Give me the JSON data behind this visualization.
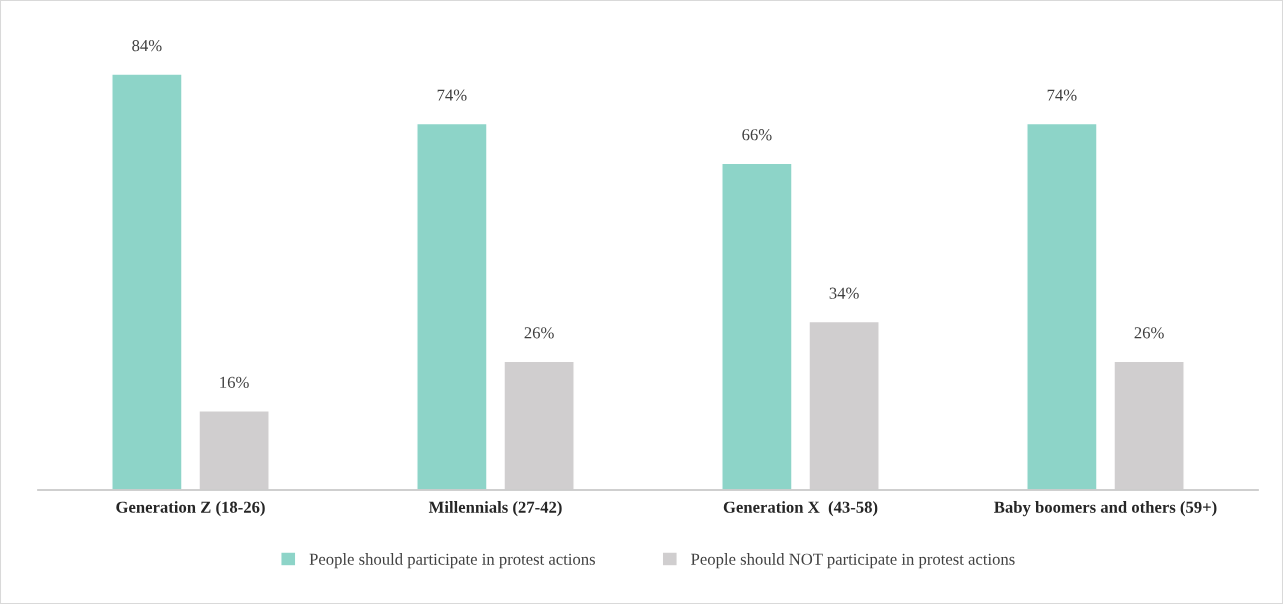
{
  "chart_data": {
    "type": "bar",
    "categories": [
      "Generation Z (18-26)",
      "Millennials (27-42)",
      "Generation X  (43-58)",
      "Baby boomers and others (59+)"
    ],
    "series": [
      {
        "name": "People should participate in protest actions",
        "color": "#8dd4c8",
        "values": [
          84,
          74,
          66,
          74
        ],
        "value_labels": [
          "84%",
          "74%",
          "66%",
          "74%"
        ]
      },
      {
        "name": "People should NOT participate in protest actions",
        "color": "#d0cecf",
        "values": [
          16,
          26,
          34,
          26
        ],
        "value_labels": [
          "16%",
          "26%",
          "34%",
          "26%"
        ]
      }
    ],
    "legend": "bottom",
    "grid": false
  }
}
